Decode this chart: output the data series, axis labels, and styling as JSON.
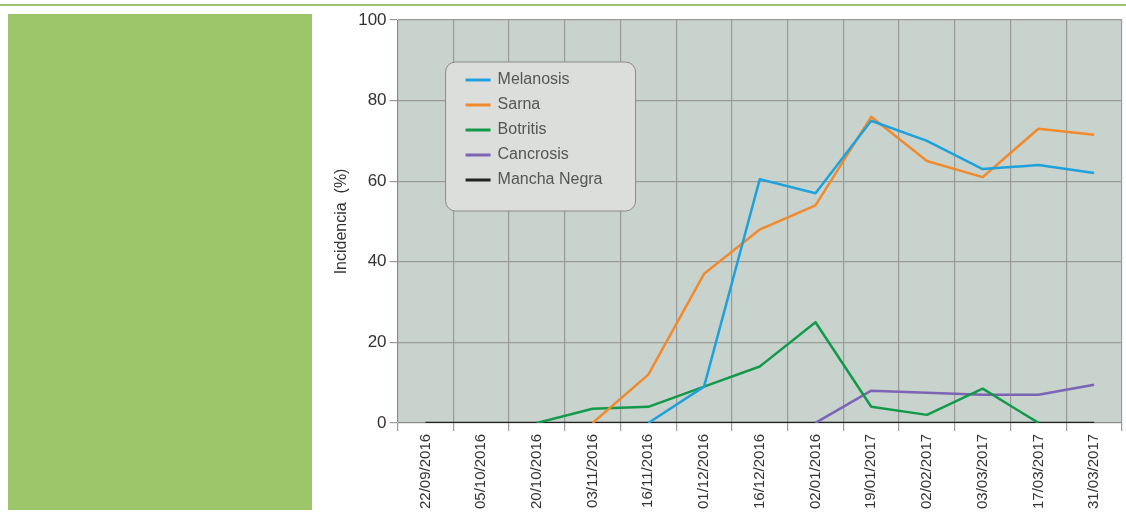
{
  "chart_data": {
    "type": "line",
    "ylabel": "Incidencia  (%)",
    "categories": [
      "22/09/2016",
      "05/10/2016",
      "20/10/2016",
      "03/11/2016",
      "16/11/2016",
      "01/12/2016",
      "16/12/2016",
      "02/01/2016",
      "19/01/2017",
      "02/02/2017",
      "03/03/2017",
      "17/03/2017",
      "31/03/2017"
    ],
    "series": [
      {
        "name": "Melanosis",
        "color": "#1ea1dc",
        "values": [
          null,
          null,
          null,
          null,
          0,
          9,
          60.5,
          57,
          75,
          70,
          63,
          64,
          62
        ]
      },
      {
        "name": "Sarna",
        "color": "#f08a2c",
        "values": [
          null,
          null,
          null,
          0,
          12,
          37,
          48,
          54,
          76,
          65,
          61,
          73,
          71.5
        ]
      },
      {
        "name": "Botritis",
        "color": "#129a4a",
        "values": [
          null,
          null,
          0,
          3.5,
          4,
          9,
          14,
          25,
          4,
          2,
          8.5,
          0,
          null
        ]
      },
      {
        "name": "Cancrosis",
        "color": "#7d64b4",
        "values": [
          null,
          null,
          null,
          null,
          null,
          null,
          null,
          0,
          8,
          7.5,
          7,
          7,
          9.5
        ]
      },
      {
        "name": "Mancha Negra",
        "color": "#222222",
        "values": [
          0,
          0,
          0,
          0,
          0,
          0,
          0,
          0,
          0,
          0,
          0,
          0,
          0
        ]
      }
    ],
    "ylim": [
      0,
      100
    ],
    "yticks": [
      0,
      20,
      40,
      60,
      80,
      100
    ],
    "grid": true,
    "legend": "top left",
    "marker": "none",
    "line_style": "solid"
  }
}
